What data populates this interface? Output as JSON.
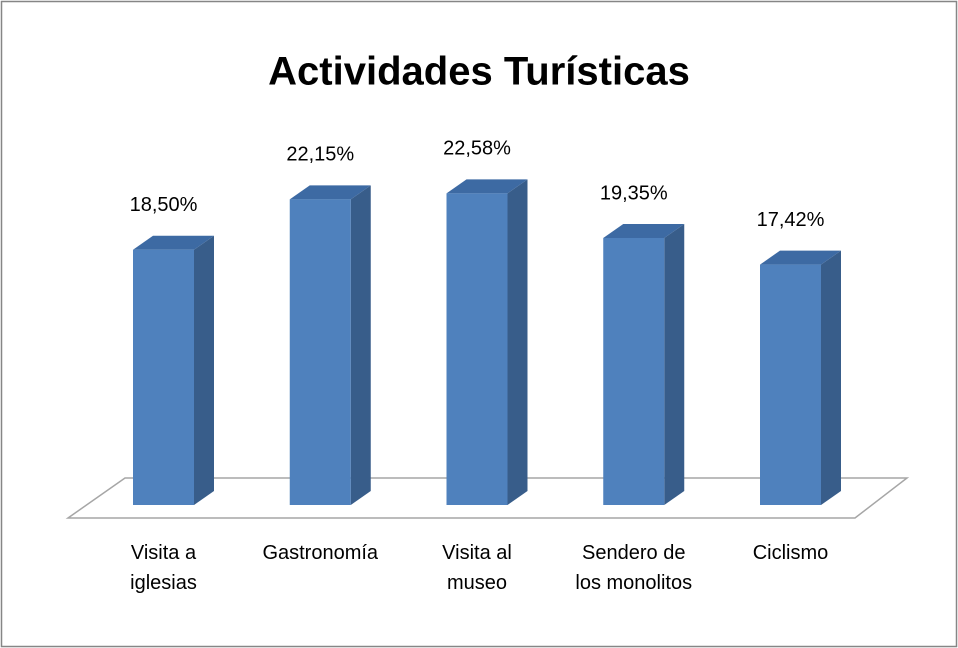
{
  "chart_data": {
    "type": "bar3d",
    "title": "Actividades Turísticas",
    "categories": [
      "Visita a iglesias",
      "Gastronomía",
      "Visita al museo",
      "Sendero de los monolitos",
      "Ciclismo"
    ],
    "values": [
      18.5,
      22.15,
      22.58,
      19.35,
      17.42
    ],
    "value_labels": [
      "18,50%",
      "22,15%",
      "22,58%",
      "19,35%",
      "17,42%"
    ],
    "color": "#4f81bd"
  }
}
